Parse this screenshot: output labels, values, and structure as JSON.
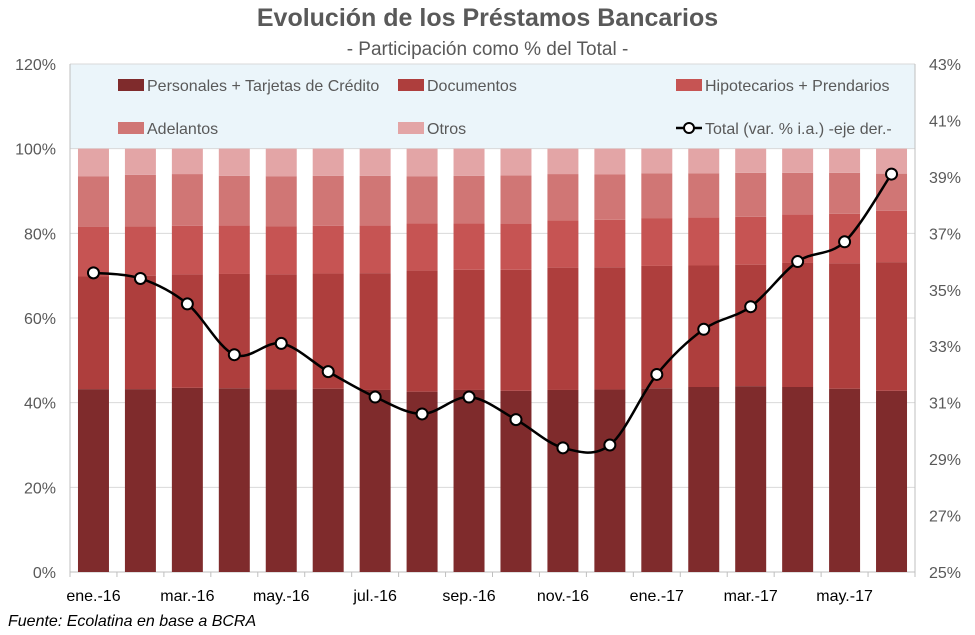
{
  "colors": {
    "series": [
      "#7f2b2c",
      "#ae3e3d",
      "#c65453",
      "#d07675",
      "#e3a5a6"
    ],
    "line": "#000000",
    "legend_bg": "#ebf5fa",
    "axis_text": "#595959",
    "grid": "#d9d9d9"
  },
  "chart_data": {
    "type": "bar",
    "stacked": true,
    "title": "Evolución de los Préstamos Bancarios",
    "subtitle": "- Participación como % del Total -",
    "source": "Fuente: Ecolatina en base a BCRA",
    "categories": [
      "ene.-16",
      "feb.-16",
      "mar.-16",
      "abr.-16",
      "may.-16",
      "jun.-16",
      "jul.-16",
      "ago.-16",
      "sep.-16",
      "oct.-16",
      "nov.-16",
      "dic.-16",
      "ene.-17",
      "feb.-17",
      "mar.-17",
      "abr.-17",
      "may.-17",
      "jun.-17"
    ],
    "x_tick_labels": [
      "ene.-16",
      "",
      "mar.-16",
      "",
      "may.-16",
      "",
      "jul.-16",
      "",
      "sep.-16",
      "",
      "nov.-16",
      "",
      "ene.-17",
      "",
      "mar.-17",
      "",
      "may.-17",
      ""
    ],
    "y_left": {
      "ticks": [
        "0%",
        "20%",
        "40%",
        "60%",
        "80%",
        "100%",
        "120%"
      ],
      "ylim": [
        0,
        120
      ]
    },
    "y_right": {
      "ticks": [
        "25%",
        "27%",
        "29%",
        "31%",
        "33%",
        "35%",
        "37%",
        "39%",
        "41%",
        "43%"
      ],
      "ylim": [
        25,
        43
      ]
    },
    "grid": true,
    "legend_position": "top",
    "series": [
      {
        "name": "Personales + Tarjetas de Crédito",
        "axis": "left",
        "values": [
          43.2,
          43.2,
          43.5,
          43.4,
          43.1,
          43.3,
          43.0,
          42.6,
          43.0,
          42.8,
          43.0,
          43.1,
          43.4,
          43.7,
          43.9,
          43.7,
          43.3,
          42.8
        ]
      },
      {
        "name": "Documentos",
        "axis": "left",
        "values": [
          26.6,
          26.8,
          26.8,
          27.0,
          27.2,
          27.2,
          27.6,
          28.6,
          28.4,
          28.6,
          28.9,
          28.9,
          28.9,
          28.7,
          28.7,
          29.3,
          29.6,
          30.4
        ]
      },
      {
        "name": "Hipotecarios + Prendarios",
        "axis": "left",
        "values": [
          11.7,
          11.6,
          11.5,
          11.5,
          11.4,
          11.3,
          11.3,
          11.2,
          11.0,
          10.9,
          11.2,
          11.2,
          11.3,
          11.4,
          11.3,
          11.5,
          11.7,
          12.1
        ]
      },
      {
        "name": "Adelantos",
        "axis": "left",
        "values": [
          12.0,
          12.2,
          12.2,
          11.7,
          11.8,
          11.8,
          11.7,
          11.1,
          11.2,
          11.4,
          10.9,
          10.7,
          10.6,
          10.4,
          10.4,
          9.8,
          9.7,
          8.8
        ]
      },
      {
        "name": "Otros",
        "axis": "left",
        "values": [
          6.5,
          6.2,
          6.0,
          6.4,
          6.5,
          6.4,
          6.4,
          6.5,
          6.4,
          6.3,
          6.0,
          6.1,
          5.8,
          5.8,
          5.7,
          5.7,
          5.7,
          5.9
        ]
      },
      {
        "name": "Total (var. % i.a.) -eje der.-",
        "axis": "right",
        "type": "line",
        "values": [
          35.6,
          35.4,
          34.5,
          32.7,
          33.1,
          32.1,
          31.2,
          30.6,
          31.2,
          30.4,
          29.4,
          29.5,
          32.0,
          33.6,
          34.4,
          36.0,
          36.7,
          39.1
        ]
      }
    ]
  }
}
